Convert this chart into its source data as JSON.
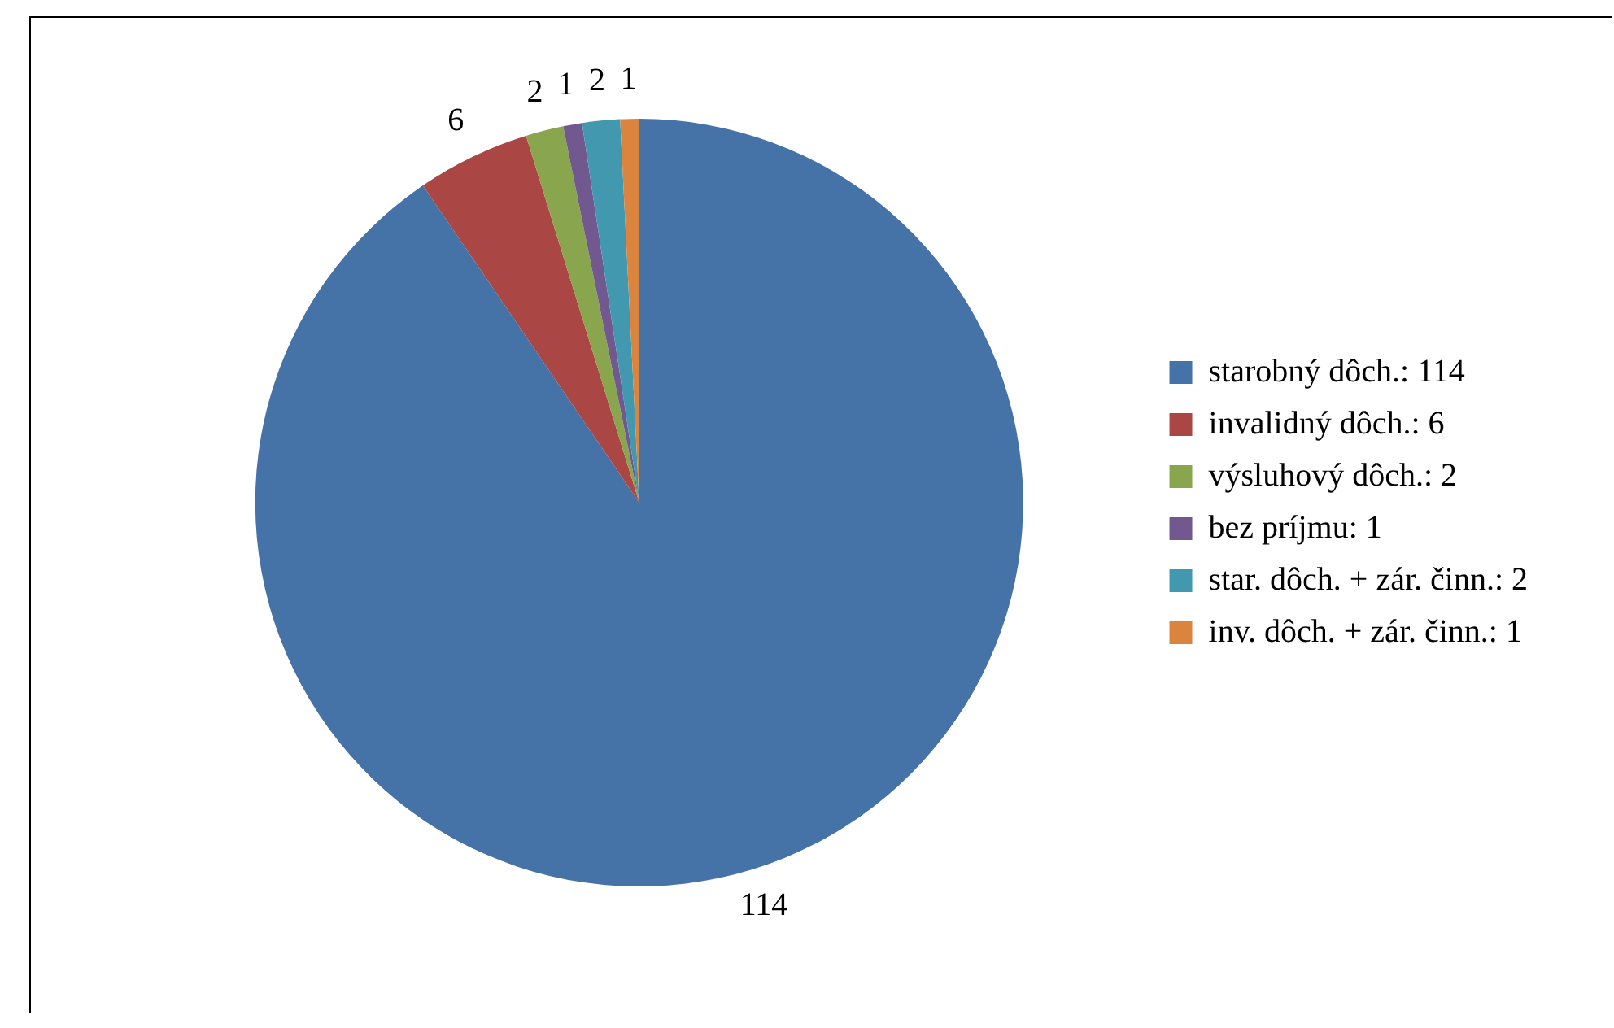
{
  "chart_data": {
    "type": "pie",
    "categories": [
      "starobný dôch.: 114",
      "invalidný dôch.: 6",
      "výsluhový dôch.: 2",
      "bez príjmu: 1",
      "star. dôch. + zár. činn.: 2",
      "inv. dôch. + zár. činn.: 1"
    ],
    "values": [
      114,
      6,
      2,
      1,
      2,
      1
    ],
    "colors": [
      "#4572a7",
      "#aa4643",
      "#89a54e",
      "#71588f",
      "#4198af",
      "#db843d"
    ],
    "data_labels": true,
    "legend": "right"
  }
}
